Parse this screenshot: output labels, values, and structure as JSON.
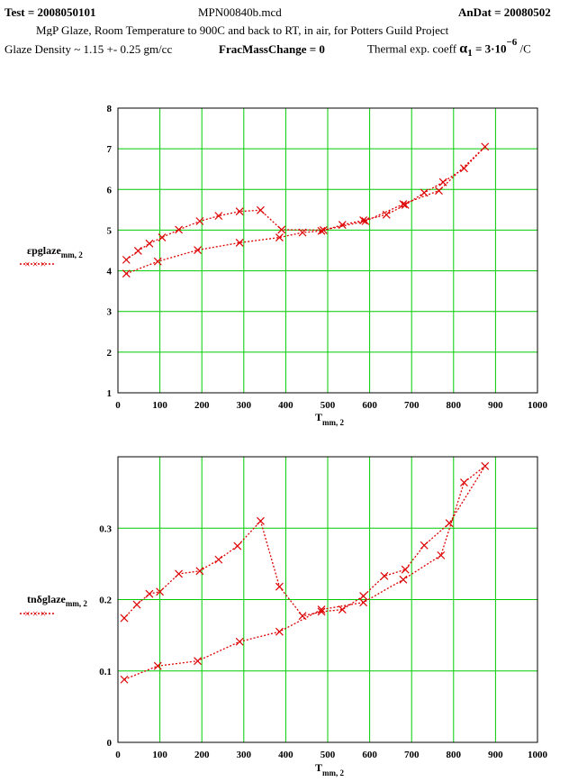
{
  "header": {
    "test": "Test = 2008050101",
    "file": "MPN00840b.mcd",
    "andat": "AnDat = 20080502",
    "subtitle": "MgP Glaze, Room Temperature to 900C and back to RT, in  air, for Potters Guild Project",
    "density": "Glaze Density ~ 1.15 +- 0.25 gm/cc",
    "fracmass": "FracMassChange = 0",
    "thermal_prefix": "Thermal exp. coeff",
    "alpha_symbol": "α",
    "alpha_sub": "1",
    "alpha_eq": " = 3·10",
    "alpha_exp": "−6",
    "alpha_unit": " /C"
  },
  "colors": {
    "grid": "#00cc00",
    "series": "#dd0000",
    "frame": "#000000"
  },
  "chart_data": [
    {
      "type": "scatter",
      "xlabel_main": "T",
      "xlabel_sub": "mm, 2",
      "ylabel_main": "εpglaze",
      "ylabel_sub": "mm, 2",
      "legend_marker": "×××",
      "xlim": [
        0,
        1000
      ],
      "ylim": [
        1,
        8
      ],
      "xticks": [
        0,
        100,
        200,
        300,
        400,
        500,
        600,
        700,
        800,
        900,
        1000
      ],
      "yticks": [
        1,
        2,
        3,
        4,
        5,
        6,
        7,
        8
      ],
      "grid": true,
      "series": [
        {
          "points": [
            [
              20,
              3.93
            ],
            [
              95,
              4.23
            ],
            [
              190,
              4.51
            ],
            [
              290,
              4.69
            ],
            [
              385,
              4.82
            ],
            [
              440,
              4.94
            ],
            [
              485,
              4.98
            ],
            [
              535,
              5.13
            ],
            [
              585,
              5.24
            ],
            [
              640,
              5.38
            ],
            [
              685,
              5.62
            ],
            [
              730,
              5.92
            ],
            [
              775,
              6.18
            ],
            [
              825,
              6.52
            ],
            [
              875,
              7.05
            ],
            [
              765,
              5.97
            ],
            [
              680,
              5.64
            ],
            [
              590,
              5.22
            ],
            [
              490,
              5.0
            ],
            [
              390,
              5.01
            ],
            [
              340,
              5.49
            ],
            [
              290,
              5.46
            ],
            [
              240,
              5.35
            ],
            [
              195,
              5.22
            ],
            [
              145,
              5.01
            ],
            [
              105,
              4.82
            ],
            [
              75,
              4.67
            ],
            [
              48,
              4.49
            ],
            [
              20,
              4.27
            ]
          ]
        }
      ]
    },
    {
      "type": "scatter",
      "xlabel_main": "T",
      "xlabel_sub": "mm, 2",
      "ylabel_main": "tnδglaze",
      "ylabel_sub": "mm, 2",
      "legend_marker": "×××",
      "xlim": [
        0,
        1000
      ],
      "ylim": [
        0,
        0.4
      ],
      "xticks": [
        0,
        100,
        200,
        300,
        400,
        500,
        600,
        700,
        800,
        900,
        1000
      ],
      "ytick_values": [
        0,
        0.1,
        0.2,
        0.3
      ],
      "ytick_labels": [
        "0",
        "0.1",
        "0.2",
        "0.3"
      ],
      "grid": true,
      "series": [
        {
          "points": [
            [
              15,
              0.088
            ],
            [
              95,
              0.107
            ],
            [
              190,
              0.114
            ],
            [
              290,
              0.141
            ],
            [
              385,
              0.155
            ],
            [
              485,
              0.186
            ],
            [
              585,
              0.196
            ],
            [
              680,
              0.228
            ],
            [
              770,
              0.262
            ],
            [
              825,
              0.364
            ],
            [
              875,
              0.387
            ],
            [
              790,
              0.307
            ],
            [
              730,
              0.276
            ],
            [
              685,
              0.242
            ],
            [
              635,
              0.233
            ],
            [
              585,
              0.205
            ],
            [
              535,
              0.186
            ],
            [
              485,
              0.183
            ],
            [
              440,
              0.177
            ],
            [
              385,
              0.218
            ],
            [
              340,
              0.31
            ],
            [
              285,
              0.275
            ],
            [
              240,
              0.256
            ],
            [
              195,
              0.24
            ],
            [
              145,
              0.236
            ],
            [
              100,
              0.211
            ],
            [
              75,
              0.208
            ],
            [
              45,
              0.193
            ],
            [
              15,
              0.174
            ]
          ]
        }
      ]
    }
  ]
}
